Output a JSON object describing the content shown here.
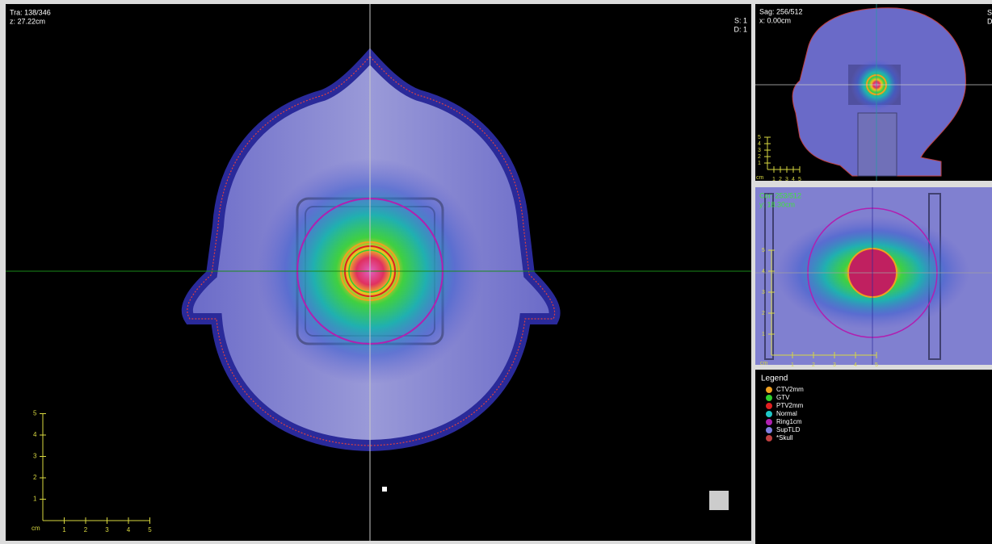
{
  "views": {
    "transverse": {
      "info": [
        "Tra: 138/346",
        "z: 27.22cm"
      ],
      "corner": [
        "S: 1",
        "D: 1"
      ]
    },
    "sagittal": {
      "info": [
        "Sag: 256/512",
        "x: 0.00cm"
      ],
      "corner": [
        "S",
        "D"
      ]
    },
    "coronal": {
      "info": [
        "Cor: 253/512",
        "y: 18.30cm"
      ]
    }
  },
  "scale_bar": {
    "unit": "cm",
    "ticks": [
      "1",
      "2",
      "3",
      "4",
      "5"
    ]
  },
  "legend": {
    "title": "Legend",
    "items": [
      {
        "name": "CTV2mm",
        "color": "#f0a020"
      },
      {
        "name": "GTV",
        "color": "#30d030"
      },
      {
        "name": "PTV2mm",
        "color": "#e02020"
      },
      {
        "name": "Normal",
        "color": "#20c8c8"
      },
      {
        "name": "Ring1cm",
        "color": "#b020b0"
      },
      {
        "name": "SupTLD",
        "color": "#8080e0"
      },
      {
        "name": "*Skull",
        "color": "#c04040"
      }
    ]
  }
}
